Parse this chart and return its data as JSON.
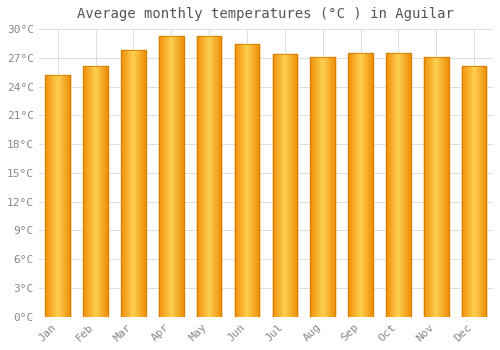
{
  "title": "Average monthly temperatures (°C ) in Aguilar",
  "months": [
    "Jan",
    "Feb",
    "Mar",
    "Apr",
    "May",
    "Jun",
    "Jul",
    "Aug",
    "Sep",
    "Oct",
    "Nov",
    "Dec"
  ],
  "temperatures": [
    25.2,
    26.2,
    27.8,
    29.3,
    29.3,
    28.4,
    27.4,
    27.1,
    27.5,
    27.5,
    27.1,
    26.2
  ],
  "bar_color_center": "#FFD050",
  "bar_color_edge": "#F0900A",
  "background_color": "#FFFFFF",
  "grid_color": "#DDDDDD",
  "ylim": [
    0,
    30
  ],
  "ytick_step": 3,
  "title_fontsize": 10,
  "tick_fontsize": 8,
  "tick_color": "#888888"
}
